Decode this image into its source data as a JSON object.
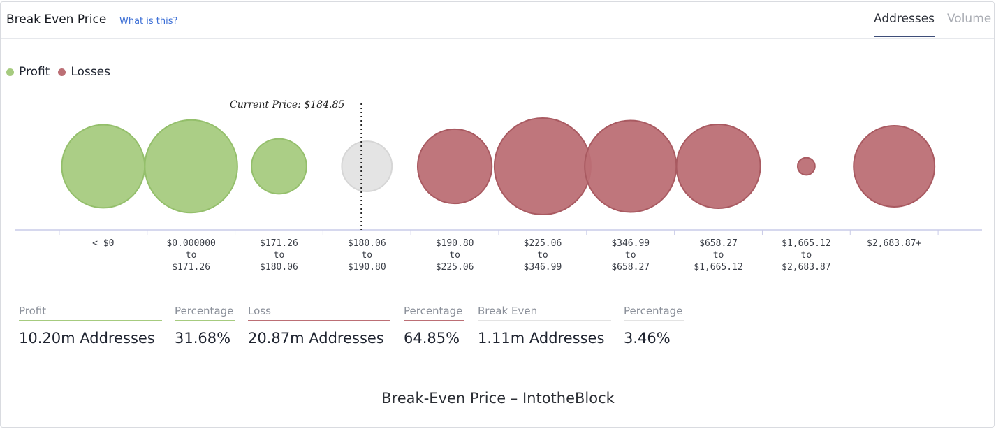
{
  "header": {
    "title": "Break Even Price",
    "help_link": "What is this?",
    "tabs": [
      {
        "label": "Addresses",
        "active": true
      },
      {
        "label": "Volume",
        "active": false
      }
    ]
  },
  "legend": [
    {
      "label": "Profit",
      "color": "#a6cb7f"
    },
    {
      "label": "Losses",
      "color": "#bc6f75"
    }
  ],
  "colors": {
    "profit": "#a6cb7f",
    "loss": "#bc6f75",
    "break_even": "#e3e3e3"
  },
  "chart_data": {
    "type": "bubble",
    "current_price_label": "Current Price: $184.85",
    "current_price": 184.85,
    "bins": [
      {
        "label": [
          "< $0"
        ],
        "status": "profit",
        "relative_size": 0.86
      },
      {
        "label": [
          "$0.000000",
          "to",
          "$171.26"
        ],
        "status": "profit",
        "relative_size": 0.96
      },
      {
        "label": [
          "$171.26",
          "to",
          "$180.06"
        ],
        "status": "profit",
        "relative_size": 0.57
      },
      {
        "label": [
          "$180.06",
          "to",
          "$190.80"
        ],
        "status": "break_even",
        "relative_size": 0.52
      },
      {
        "label": [
          "$190.80",
          "to",
          "$225.06"
        ],
        "status": "loss",
        "relative_size": 0.77
      },
      {
        "label": [
          "$225.06",
          "to",
          "$346.99"
        ],
        "status": "loss",
        "relative_size": 1.0
      },
      {
        "label": [
          "$346.99",
          "to",
          "$658.27"
        ],
        "status": "loss",
        "relative_size": 0.95
      },
      {
        "label": [
          "$658.27",
          "to",
          "$1,665.12"
        ],
        "status": "loss",
        "relative_size": 0.87
      },
      {
        "label": [
          "$1,665.12",
          "to",
          "$2,683.87"
        ],
        "status": "loss",
        "relative_size": 0.18
      },
      {
        "label": [
          "$2,683.87+"
        ],
        "status": "loss",
        "relative_size": 0.84
      }
    ]
  },
  "stats": [
    {
      "label": "Profit",
      "value": "10.20m Addresses",
      "underline": "#a6cb7f"
    },
    {
      "label": "Percentage",
      "value": "31.68%",
      "underline": "#a6cb7f"
    },
    {
      "label": "Loss",
      "value": "20.87m Addresses",
      "underline": "#bc6f75"
    },
    {
      "label": "Percentage",
      "value": "64.85%",
      "underline": "#bc6f75"
    },
    {
      "label": "Break Even",
      "value": "1.11m Addresses",
      "underline": "#e3e3e3"
    },
    {
      "label": "Percentage",
      "value": "3.46%",
      "underline": "#e3e3e3"
    }
  ],
  "caption": "Break-Even Price – IntotheBlock"
}
